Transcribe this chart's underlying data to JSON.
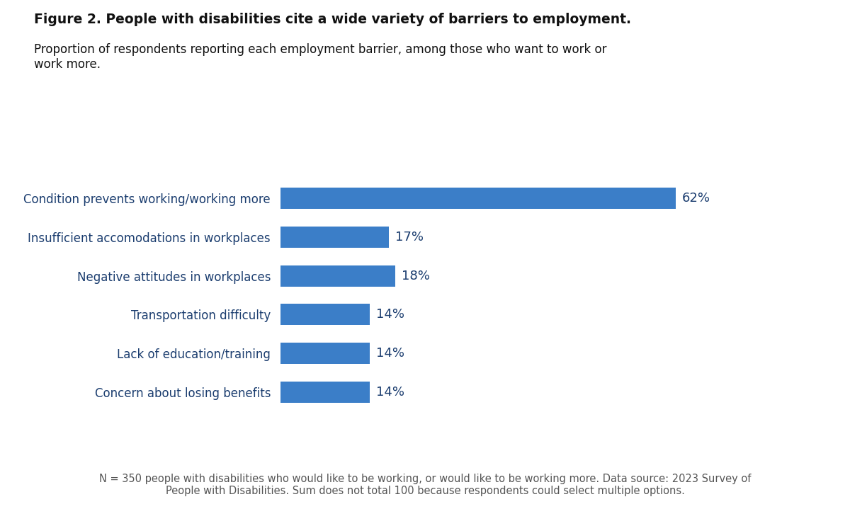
{
  "title_bold": "Figure 2. People with disabilities cite a wide variety of barriers to employment.",
  "subtitle": "Proportion of respondents reporting each employment barrier, among those who want to work or\nwork more.",
  "categories": [
    "Condition prevents working/working more",
    "Insufficient accomodations in workplaces",
    "Negative attitudes in workplaces",
    "Transportation difficulty",
    "Lack of education/training",
    "Concern about losing benefits"
  ],
  "values": [
    62,
    17,
    18,
    14,
    14,
    14
  ],
  "bar_color": "#3B7EC8",
  "label_color": "#1B3D6F",
  "value_color": "#1B3D6F",
  "title_color": "#111111",
  "subtitle_color": "#111111",
  "footnote": "N = 350 people with disabilities who would like to be working, or would like to be working more. Data source: 2023 Survey of\nPeople with Disabilities. Sum does not total 100 because respondents could select multiple options.",
  "footnote_color": "#555555",
  "background_color": "#FFFFFF",
  "xlim": [
    0,
    80
  ],
  "bar_height": 0.55,
  "title_fontsize": 13.5,
  "subtitle_fontsize": 12,
  "label_fontsize": 12,
  "value_fontsize": 13,
  "footnote_fontsize": 10.5
}
